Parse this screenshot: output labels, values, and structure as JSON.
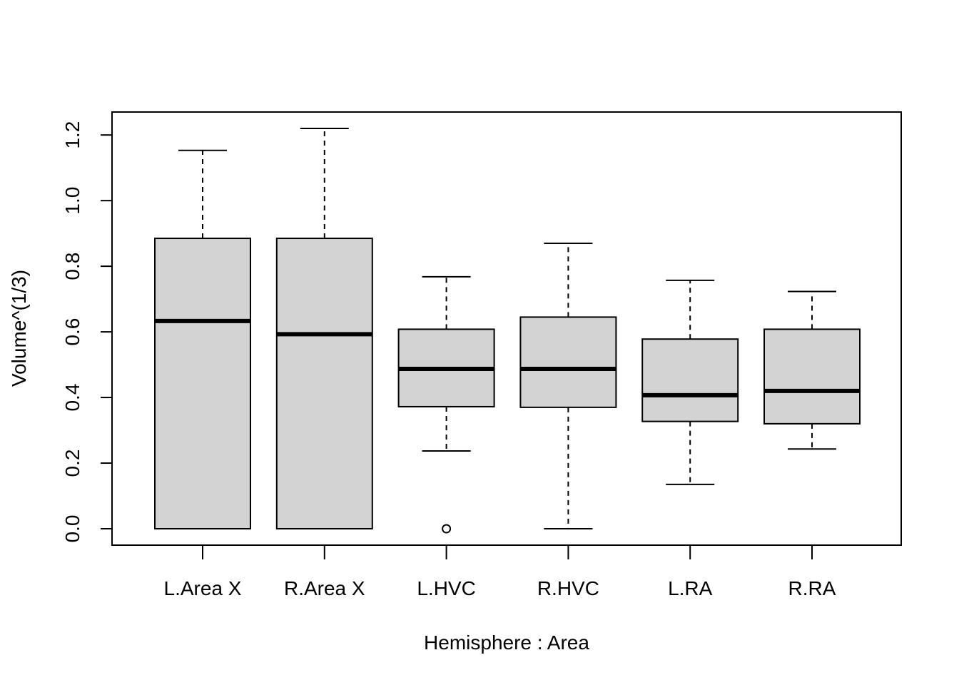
{
  "chart_data": {
    "type": "boxplot",
    "title": "",
    "xlabel": "Hemisphere : Area",
    "ylabel": "Volume^(1/3)",
    "ylim": [
      -0.05,
      1.27
    ],
    "yticks": [
      0.0,
      0.2,
      0.4,
      0.6,
      0.8,
      1.0,
      1.2
    ],
    "ytick_labels": [
      "0.0",
      "0.2",
      "0.4",
      "0.6",
      "0.8",
      "1.0",
      "1.2"
    ],
    "grid": false,
    "box_color": "#d3d3d3",
    "categories": [
      "L.Area X",
      "R.Area X",
      "L.HVC",
      "R.HVC",
      "L.RA",
      "R.RA"
    ],
    "boxes": [
      {
        "whisker_low": 0.0,
        "q1": 0.0,
        "median": 0.633,
        "q3": 0.885,
        "whisker_high": 1.153,
        "outliers": []
      },
      {
        "whisker_low": 0.0,
        "q1": 0.0,
        "median": 0.593,
        "q3": 0.885,
        "whisker_high": 1.22,
        "outliers": []
      },
      {
        "whisker_low": 0.237,
        "q1": 0.372,
        "median": 0.487,
        "q3": 0.608,
        "whisker_high": 0.768,
        "outliers": [
          0.0
        ]
      },
      {
        "whisker_low": 0.0,
        "q1": 0.37,
        "median": 0.487,
        "q3": 0.645,
        "whisker_high": 0.87,
        "outliers": []
      },
      {
        "whisker_low": 0.135,
        "q1": 0.327,
        "median": 0.407,
        "q3": 0.578,
        "whisker_high": 0.757,
        "outliers": []
      },
      {
        "whisker_low": 0.243,
        "q1": 0.32,
        "median": 0.42,
        "q3": 0.608,
        "whisker_high": 0.723,
        "outliers": []
      }
    ]
  }
}
